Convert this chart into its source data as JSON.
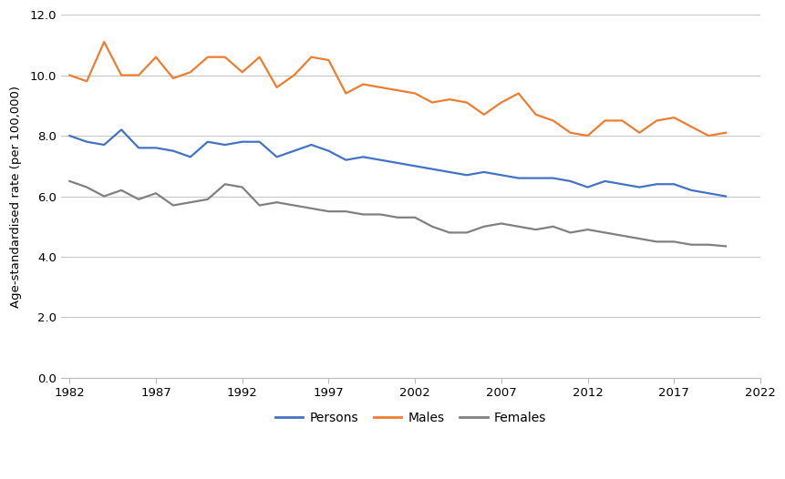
{
  "years": [
    1982,
    1983,
    1984,
    1985,
    1986,
    1987,
    1988,
    1989,
    1990,
    1991,
    1992,
    1993,
    1994,
    1995,
    1996,
    1997,
    1998,
    1999,
    2000,
    2001,
    2002,
    2003,
    2004,
    2005,
    2006,
    2007,
    2008,
    2009,
    2010,
    2011,
    2012,
    2013,
    2014,
    2015,
    2016,
    2017,
    2018,
    2019,
    2020
  ],
  "persons": [
    8.0,
    7.8,
    7.7,
    8.2,
    7.6,
    7.6,
    7.5,
    7.3,
    7.8,
    7.7,
    7.8,
    7.8,
    7.3,
    7.5,
    7.7,
    7.5,
    7.2,
    7.3,
    7.2,
    7.1,
    7.0,
    6.9,
    6.8,
    6.7,
    6.8,
    6.7,
    6.6,
    6.6,
    6.6,
    6.5,
    6.3,
    6.5,
    6.4,
    6.3,
    6.4,
    6.4,
    6.2,
    6.1,
    6.0
  ],
  "males": [
    10.0,
    9.8,
    11.1,
    10.0,
    10.0,
    10.6,
    9.9,
    10.1,
    10.6,
    10.6,
    10.1,
    10.6,
    9.6,
    10.0,
    10.6,
    10.5,
    9.4,
    9.7,
    9.6,
    9.5,
    9.4,
    9.1,
    9.2,
    9.1,
    8.7,
    9.1,
    9.4,
    8.7,
    8.5,
    8.1,
    8.0,
    8.5,
    8.5,
    8.1,
    8.5,
    8.6,
    8.3,
    8.0,
    8.1
  ],
  "females": [
    6.5,
    6.3,
    6.0,
    6.2,
    5.9,
    6.1,
    5.7,
    5.8,
    5.9,
    6.4,
    6.3,
    5.7,
    5.8,
    5.7,
    5.6,
    5.5,
    5.5,
    5.4,
    5.4,
    5.3,
    5.3,
    5.0,
    4.8,
    4.8,
    5.0,
    5.1,
    5.0,
    4.9,
    5.0,
    4.8,
    4.9,
    4.8,
    4.7,
    4.6,
    4.5,
    4.5,
    4.4,
    4.4,
    4.35
  ],
  "persons_color": "#4472c4",
  "males_color": "#ed7d31",
  "females_color": "#808080",
  "ylabel": "Age-standardised rate (per 100,000)",
  "ylim": [
    0.0,
    12.0
  ],
  "yticks": [
    0.0,
    2.0,
    4.0,
    6.0,
    8.0,
    10.0,
    12.0
  ],
  "xlim": [
    1981.5,
    2022
  ],
  "xticks": [
    1982,
    1987,
    1992,
    1997,
    2002,
    2007,
    2012,
    2017,
    2022
  ],
  "legend_labels": [
    "Persons",
    "Males",
    "Females"
  ],
  "line_width": 1.6,
  "grid_color": "#c8c8c8",
  "background_color": "#ffffff"
}
